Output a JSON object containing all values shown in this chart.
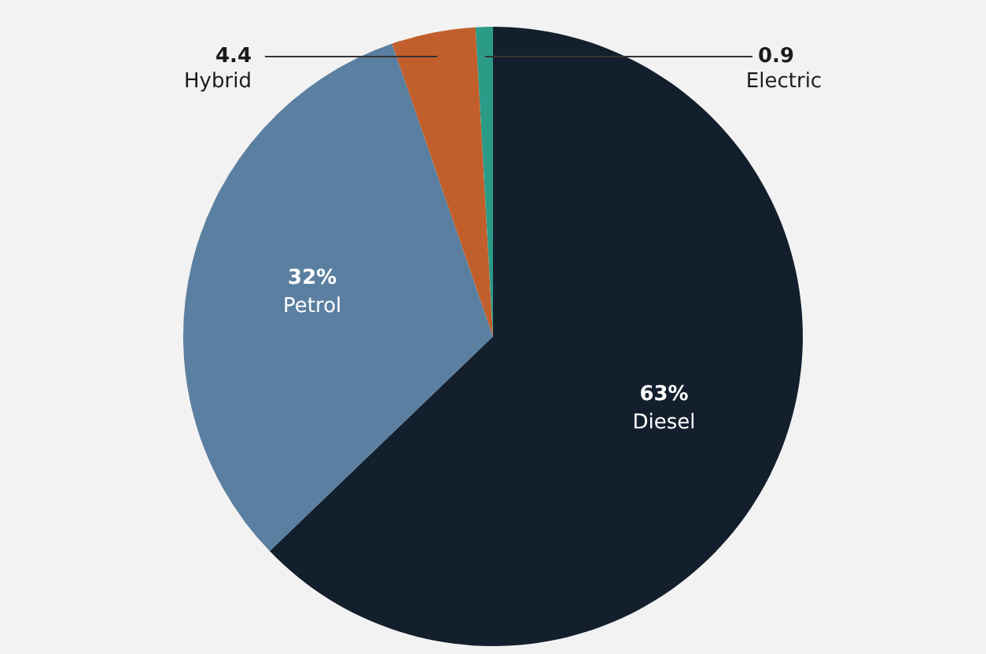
{
  "chart_data": {
    "type": "pie",
    "categories": [
      "Diesel",
      "Petrol",
      "Hybrid",
      "Electric"
    ],
    "values": [
      63,
      32,
      4.4,
      0.9
    ],
    "colors": [
      "#131f2d",
      "#5b7fa0",
      "#c15f2c",
      "#2b9b87"
    ],
    "value_labels": [
      "63%",
      "32%",
      "4.4",
      "0.9"
    ],
    "legend": false
  }
}
